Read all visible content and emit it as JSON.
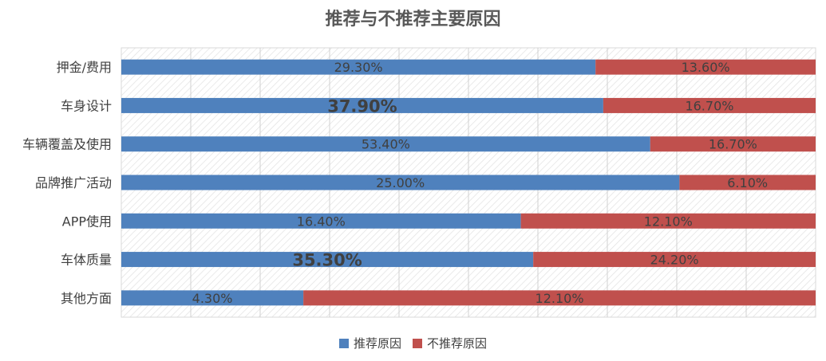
{
  "chart_data": {
    "type": "bar",
    "orientation": "horizontal",
    "stacked": "percent",
    "title": "推荐与不推荐主要原因",
    "categories": [
      "押金/费用",
      "车身设计",
      "车辆覆盖及使用",
      "品牌推广活动",
      "APP使用",
      "车体质量",
      "其他方面"
    ],
    "series": [
      {
        "name": "推荐原因",
        "color": "#4f81bd",
        "values": [
          29.3,
          37.9,
          53.4,
          25.0,
          16.4,
          35.3,
          4.3
        ],
        "labels": [
          "29.30%",
          "37.90%",
          "53.40%",
          "25.00%",
          "16.40%",
          "35.30%",
          "4.30%"
        ]
      },
      {
        "name": "不推荐原因",
        "color": "#c0504d",
        "values": [
          13.6,
          16.7,
          16.7,
          6.1,
          12.1,
          24.2,
          12.1
        ],
        "labels": [
          "13.60%",
          "16.70%",
          "16.70%",
          "6.10%",
          "12.10%",
          "24.20%",
          "12.10%"
        ]
      }
    ],
    "highlighted_labels": [
      "37.90%",
      "35.30%"
    ],
    "grid": true,
    "legend_position": "bottom"
  }
}
